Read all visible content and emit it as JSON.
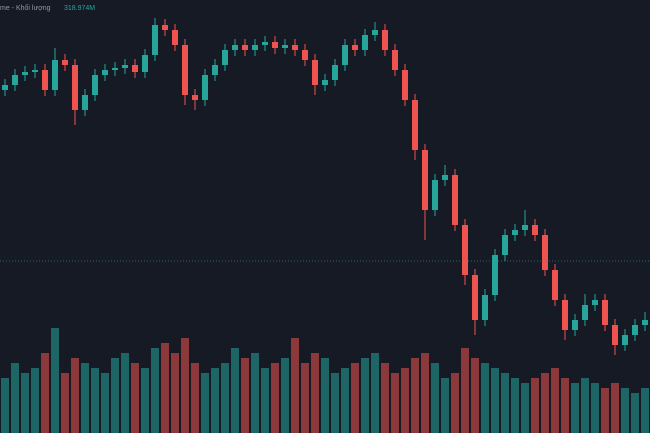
{
  "chart_data": {
    "type": "candlestick",
    "volume_title": "me - Khối lượng",
    "volume_value_label": "318.974M",
    "up_color": "#26a69a",
    "down_color": "#ef5350",
    "ylim": [
      -33,
      400
    ],
    "vlim": [
      0,
      433
    ],
    "open": [
      310,
      315,
      325,
      328,
      330,
      310,
      340,
      335,
      290,
      305,
      325,
      330,
      332,
      335,
      328,
      345,
      375,
      370,
      355,
      305,
      300,
      325,
      335,
      350,
      355,
      350,
      355,
      358,
      352,
      355,
      350,
      340,
      315,
      320,
      335,
      355,
      350,
      365,
      370,
      350,
      330,
      300,
      250,
      190,
      220,
      225,
      175,
      125,
      80,
      105,
      145,
      165,
      170,
      175,
      165,
      130,
      100,
      70,
      80,
      95,
      100,
      75,
      55,
      65,
      75
    ],
    "high": [
      321,
      331,
      334,
      336,
      336,
      352,
      346,
      341,
      311,
      331,
      336,
      338,
      341,
      341,
      351,
      382,
      381,
      376,
      361,
      311,
      331,
      341,
      356,
      361,
      361,
      361,
      364,
      364,
      361,
      361,
      356,
      346,
      326,
      341,
      361,
      361,
      371,
      378,
      376,
      356,
      336,
      306,
      256,
      226,
      235,
      231,
      181,
      131,
      111,
      151,
      171,
      176,
      190,
      181,
      171,
      136,
      106,
      86,
      106,
      106,
      106,
      81,
      71,
      81,
      88
    ],
    "low": [
      304,
      309,
      319,
      322,
      304,
      304,
      329,
      275,
      284,
      299,
      319,
      324,
      326,
      322,
      322,
      339,
      364,
      349,
      295,
      290,
      294,
      319,
      329,
      344,
      344,
      344,
      349,
      346,
      346,
      344,
      334,
      305,
      309,
      314,
      329,
      344,
      344,
      359,
      344,
      324,
      294,
      240,
      160,
      184,
      214,
      169,
      115,
      65,
      74,
      99,
      139,
      159,
      164,
      159,
      124,
      94,
      60,
      64,
      74,
      89,
      69,
      45,
      49,
      59,
      69
    ],
    "close": [
      315,
      325,
      328,
      330,
      310,
      340,
      335,
      290,
      305,
      325,
      330,
      332,
      335,
      328,
      345,
      375,
      370,
      355,
      305,
      300,
      325,
      335,
      350,
      355,
      350,
      355,
      358,
      352,
      355,
      350,
      340,
      315,
      320,
      335,
      355,
      350,
      365,
      370,
      350,
      330,
      300,
      250,
      190,
      220,
      225,
      175,
      125,
      80,
      105,
      145,
      165,
      170,
      175,
      165,
      130,
      100,
      70,
      80,
      95,
      100,
      75,
      55,
      65,
      75,
      80
    ],
    "volume": [
      55,
      70,
      60,
      65,
      80,
      105,
      60,
      75,
      70,
      65,
      60,
      75,
      80,
      70,
      65,
      85,
      90,
      80,
      95,
      70,
      60,
      65,
      70,
      85,
      75,
      80,
      65,
      70,
      75,
      95,
      70,
      80,
      75,
      60,
      65,
      70,
      75,
      80,
      70,
      60,
      65,
      75,
      80,
      70,
      55,
      60,
      85,
      75,
      70,
      65,
      60,
      55,
      50,
      55,
      60,
      65,
      55,
      50,
      55,
      50,
      45,
      50,
      45,
      40,
      45
    ]
  }
}
